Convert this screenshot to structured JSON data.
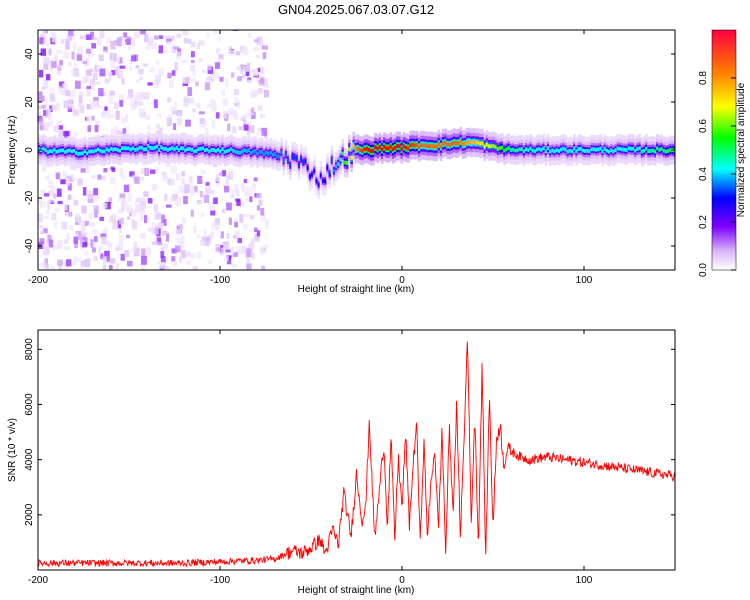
{
  "figure": {
    "title": "GN04.2025.067.03.07.G12"
  },
  "chart_data": [
    {
      "type": "heatmap",
      "xlabel": "Height of straight line (km)",
      "ylabel": "Frequency (Hz)",
      "xlim": [
        -200,
        150
      ],
      "ylim": [
        -50,
        50
      ],
      "x_ticks": [
        -200,
        -100,
        0,
        100
      ],
      "y_ticks": [
        -40,
        -20,
        0,
        20,
        40
      ],
      "colorbar": {
        "label": "Normalized spectral amplitude",
        "range": [
          0,
          1
        ],
        "ticks": [
          0.0,
          0.2,
          0.4,
          0.6,
          0.8
        ],
        "colormap": [
          "#ffffff",
          "#d8b4f8",
          "#8000ff",
          "#0000ff",
          "#00ffff",
          "#00ff00",
          "#ffff00",
          "#ff8000",
          "#ff0000"
        ]
      },
      "ridge": {
        "x": [
          -200,
          -180,
          -160,
          -140,
          -120,
          -100,
          -80,
          -70,
          -60,
          -55,
          -50,
          -45,
          -40,
          -35,
          -30,
          -25,
          -20,
          -10,
          0,
          10,
          20,
          30,
          40,
          50,
          60,
          80,
          100,
          120,
          150
        ],
        "y": [
          0,
          -1,
          0,
          1,
          0,
          0,
          -1,
          -2,
          -4,
          -6,
          -9,
          -13,
          -7,
          -5,
          -2,
          0,
          0,
          1,
          1,
          2,
          2,
          3,
          3,
          1,
          0,
          0,
          0,
          0,
          0
        ],
        "peak_amplitude": [
          0.5,
          0.5,
          0.5,
          0.5,
          0.5,
          0.5,
          0.45,
          0.45,
          0.4,
          0.4,
          0.35,
          0.35,
          0.4,
          0.5,
          0.7,
          0.9,
          1.0,
          1.0,
          1.0,
          0.9,
          0.9,
          0.9,
          0.8,
          0.7,
          0.55,
          0.5,
          0.5,
          0.5,
          0.6
        ]
      },
      "noise_extent_x": [
        -200,
        -75
      ]
    },
    {
      "type": "line",
      "xlabel": "Height of straight line (km)",
      "ylabel": "SNR (10 * v/v)",
      "xlim": [
        -200,
        150
      ],
      "ylim": [
        0,
        8700
      ],
      "x_ticks": [
        -200,
        -100,
        0,
        100
      ],
      "y_ticks": [
        2000,
        4000,
        6000,
        8000
      ],
      "color": "#ff0000",
      "series": [
        {
          "x": [
            -200,
            -180,
            -160,
            -140,
            -120,
            -100,
            -80,
            -70,
            -60,
            -55,
            -50,
            -45,
            -42,
            -38,
            -35,
            -32,
            -28,
            -25,
            -22,
            -20,
            -18,
            -15,
            -12,
            -10,
            -8,
            -6,
            -4,
            -2,
            0,
            2,
            4,
            6,
            8,
            10,
            12,
            14,
            16,
            18,
            20,
            22,
            24,
            26,
            28,
            30,
            32,
            34,
            36,
            38,
            40,
            42,
            44,
            46,
            48,
            50,
            52,
            54,
            56,
            58,
            60,
            65,
            70,
            80,
            90,
            100,
            110,
            120,
            130,
            140,
            150
          ],
          "y": [
            250,
            250,
            250,
            250,
            250,
            300,
            350,
            400,
            700,
            600,
            800,
            1100,
            600,
            1500,
            900,
            2800,
            1200,
            3500,
            1800,
            2200,
            5400,
            1100,
            3200,
            4600,
            1600,
            4800,
            1100,
            4100,
            2200,
            5000,
            1600,
            3700,
            5400,
            900,
            4700,
            1200,
            3200,
            4400,
            1400,
            5100,
            600,
            5200,
            2000,
            6000,
            1300,
            4500,
            8600,
            1700,
            5600,
            800,
            7500,
            300,
            6400,
            1500,
            4800,
            5200,
            3800,
            4400,
            4300,
            4100,
            4000,
            4100,
            4000,
            3900,
            3800,
            3700,
            3600,
            3500,
            3400
          ]
        }
      ]
    }
  ]
}
